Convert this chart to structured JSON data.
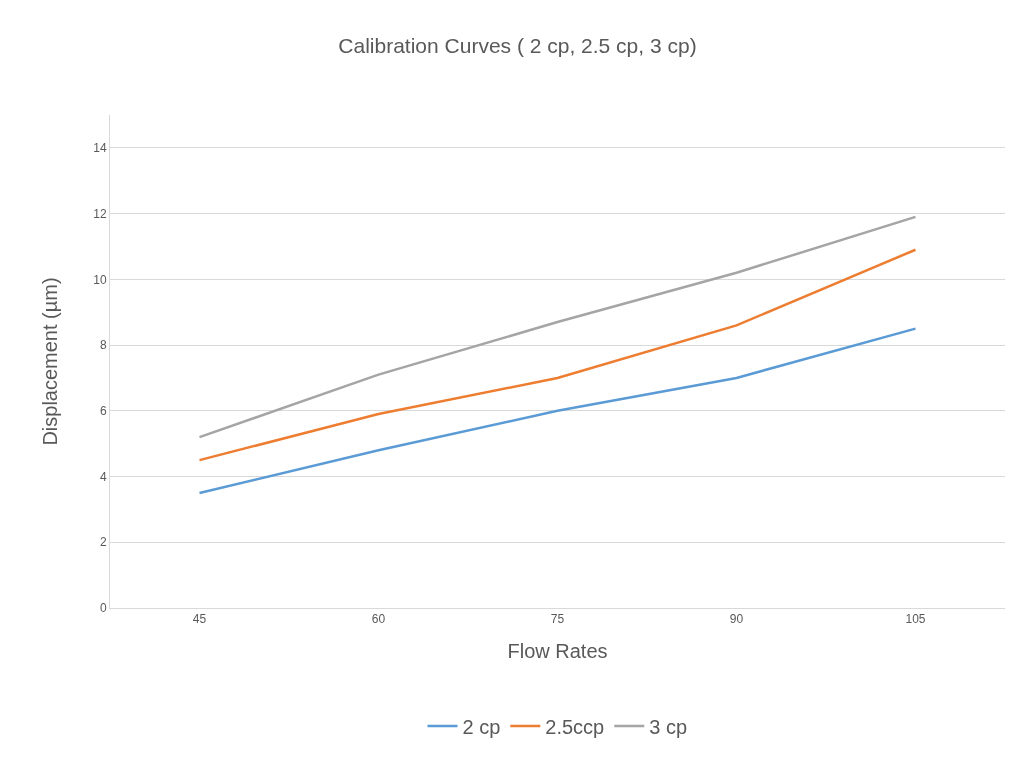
{
  "chart_data": {
    "type": "line",
    "title": "Calibration Curves ( 2 cp, 2.5 cp, 3 cp)",
    "xlabel": "Flow Rates",
    "ylabel": "Displacement (µm)",
    "categories": [
      "45",
      "60",
      "75",
      "90",
      "105"
    ],
    "series": [
      {
        "name": "2 cp",
        "color": "#5b9bd5",
        "values": [
          3.5,
          4.8,
          6.0,
          7.0,
          8.5
        ]
      },
      {
        "name": "2.5ccp",
        "color": "#ed7d31",
        "values": [
          4.5,
          5.9,
          7.0,
          8.6,
          10.9
        ]
      },
      {
        "name": "3 cp",
        "color": "#a5a5a5",
        "values": [
          5.2,
          7.1,
          8.7,
          10.2,
          11.9
        ]
      }
    ],
    "ylim": [
      0,
      15
    ],
    "yticks": [
      0,
      2,
      4,
      6,
      8,
      10,
      12,
      14
    ],
    "grid": "y",
    "legend": "bottom",
    "marker": "none",
    "line_style": "solid"
  }
}
